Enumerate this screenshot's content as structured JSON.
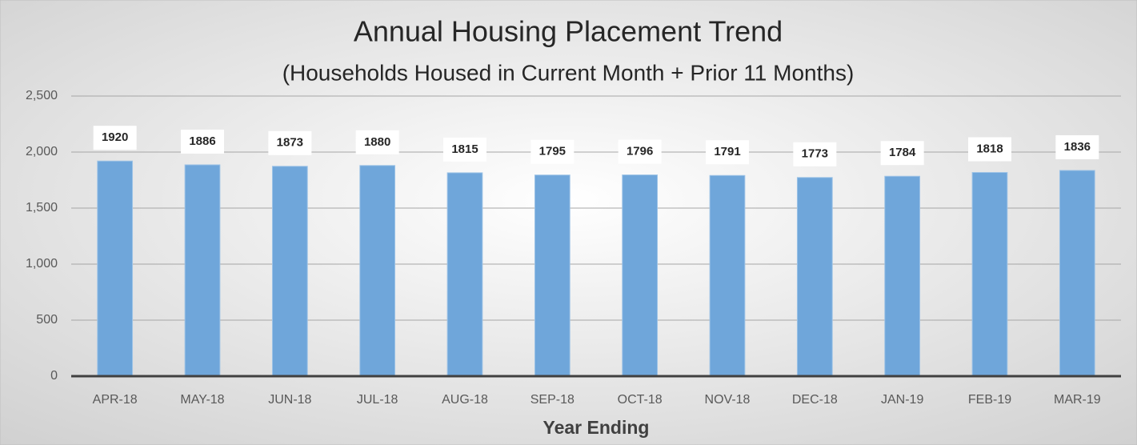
{
  "chart_data": {
    "type": "bar",
    "title": "Annual Housing Placement Trend",
    "subtitle": "(Households Housed in Current Month + Prior 11 Months)",
    "x_label": "Year Ending",
    "categories": [
      "APR-18",
      "MAY-18",
      "JUN-18",
      "JUL-18",
      "AUG-18",
      "SEP-18",
      "OCT-18",
      "NOV-18",
      "DEC-18",
      "JAN-19",
      "FEB-19",
      "MAR-19"
    ],
    "values": [
      1920,
      1886,
      1873,
      1880,
      1815,
      1795,
      1796,
      1791,
      1773,
      1784,
      1818,
      1836
    ],
    "color": "#6fa6da",
    "ylim": [
      0,
      2500
    ],
    "yticks": [
      0,
      500,
      {
        "value": 1000,
        "label": "1,000"
      },
      {
        "value": 1500,
        "label": "1,500"
      },
      {
        "value": 2000,
        "label": "2,000"
      },
      {
        "value": 2500,
        "label": "2,500"
      }
    ],
    "grid": true
  }
}
